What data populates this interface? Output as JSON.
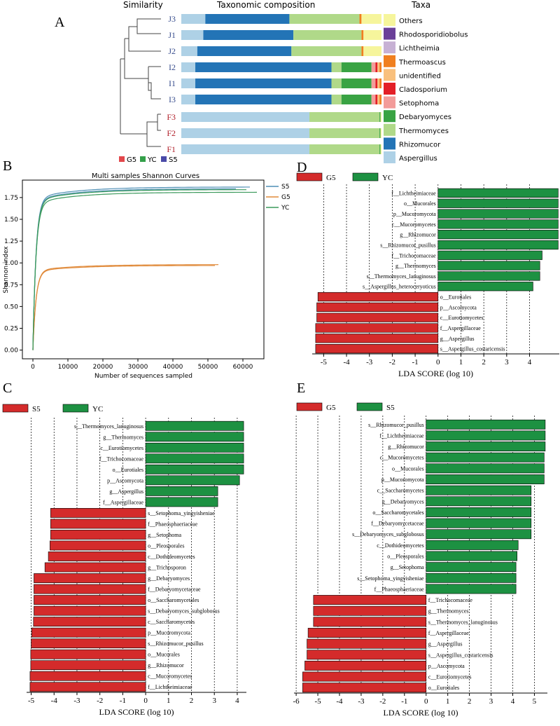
{
  "colors": {
    "Aspergillus": "#aed1e6",
    "Rhizomucor": "#2374b6",
    "Thermomyces": "#b0d989",
    "Debaryomyces": "#39a343",
    "Setophoma": "#f39c9a",
    "Cladosporium": "#e31f27",
    "unidentified": "#f9c07d",
    "Thermoascus": "#f07f1f",
    "Lichtheimia": "#c7b1d4",
    "Rhodosporidiobolus": "#6a3f98",
    "Others": "#f6f59c",
    "G5": "#e2474b",
    "YC": "#34a04a",
    "S5": "#4a4aa8",
    "lda_red": "#d42b2b",
    "lda_green": "#1d9142",
    "labelRed": "#b2222c",
    "labelBlue": "#3a4f8f",
    "curveS5": "#4f8fb5",
    "curveG5": "#e08a3a",
    "curveYC": "#3c9a5c"
  },
  "panelA": {
    "letter": "A",
    "headers": {
      "similarity": "Similarity",
      "composition": "Taxonomic composition",
      "taxa": "Taxa"
    },
    "taxa": [
      "Aspergillus",
      "Rhizomucor",
      "Thermomyces",
      "Debaryomyces",
      "Setophoma",
      "Cladosporium",
      "unidentified",
      "Thermoascus",
      "Lichtheimia",
      "Rhodosporidiobolus",
      "Others"
    ],
    "legend_order": [
      "Others",
      "Rhodosporidiobolus",
      "Lichtheimia",
      "Thermoascus",
      "unidentified",
      "Cladosporium",
      "Setophoma",
      "Debaryomyces",
      "Thermomyces",
      "Rhizomucor",
      "Aspergillus"
    ],
    "samples": [
      {
        "name": "J3",
        "color": "labelBlue",
        "values": [
          0.12,
          0.42,
          0.35,
          0,
          0,
          0,
          0,
          0.01,
          0,
          0,
          0.1
        ]
      },
      {
        "name": "J1",
        "color": "labelBlue",
        "values": [
          0.11,
          0.45,
          0.34,
          0,
          0,
          0,
          0,
          0.01,
          0,
          0,
          0.09
        ]
      },
      {
        "name": "J2",
        "color": "labelBlue",
        "values": [
          0.08,
          0.47,
          0.35,
          0,
          0,
          0,
          0,
          0.01,
          0,
          0,
          0.09
        ]
      },
      {
        "name": "I2",
        "color": "labelBlue",
        "values": [
          0.07,
          0.68,
          0.05,
          0.15,
          0.02,
          0.01,
          0.01,
          0.01,
          0,
          0,
          0
        ]
      },
      {
        "name": "I1",
        "color": "labelBlue",
        "values": [
          0.07,
          0.68,
          0.05,
          0.15,
          0.02,
          0.01,
          0.01,
          0.01,
          0,
          0,
          0
        ]
      },
      {
        "name": "I3",
        "color": "labelBlue",
        "values": [
          0.07,
          0.68,
          0.05,
          0.15,
          0.02,
          0.01,
          0.01,
          0.01,
          0,
          0,
          0
        ]
      },
      {
        "name": "F3",
        "color": "labelRed",
        "values": [
          0.64,
          0,
          0.35,
          0.005,
          0,
          0,
          0,
          0,
          0,
          0,
          0.005
        ]
      },
      {
        "name": "F2",
        "color": "labelRed",
        "values": [
          0.64,
          0,
          0.35,
          0.005,
          0,
          0,
          0,
          0,
          0,
          0,
          0.005
        ]
      },
      {
        "name": "F1",
        "color": "labelRed",
        "values": [
          0.64,
          0,
          0.35,
          0.005,
          0,
          0,
          0,
          0,
          0,
          0,
          0.005
        ]
      }
    ]
  },
  "panelB": {
    "letter": "B",
    "chart_data": {
      "type": "line",
      "title": "Multi samples Shannon Curves",
      "xlabel": "Number of sequences sampled",
      "ylabel": "Shannon index",
      "xlim": [
        -3000,
        66000
      ],
      "ylim": [
        -0.1,
        1.95
      ],
      "xticks": [
        0,
        10000,
        20000,
        30000,
        40000,
        50000,
        60000
      ],
      "yticks": [
        0.0,
        0.25,
        0.5,
        0.75,
        1.0,
        1.25,
        1.5,
        1.75
      ],
      "ytick_labels": [
        "0.00",
        "0.25",
        "0.50",
        "0.75",
        "1.00",
        "1.25",
        "1.50",
        "1.75"
      ],
      "series": [
        {
          "name": "S5",
          "color": "curveS5",
          "plateau": 1.87,
          "xmax": 62000
        },
        {
          "name": "S5",
          "color": "curveS5",
          "plateau": 1.85,
          "xmax": 58000
        },
        {
          "name": "G5",
          "color": "curveG5",
          "plateau": 0.98,
          "xmax": 53000
        },
        {
          "name": "G5",
          "color": "curveG5",
          "plateau": 0.97,
          "xmax": 52000
        },
        {
          "name": "YC",
          "color": "curveYC",
          "plateau": 1.81,
          "xmax": 64000
        },
        {
          "name": "YC",
          "color": "curveYC",
          "plateau": 1.84,
          "xmax": 61000
        }
      ],
      "legend": [
        "S5",
        "G5",
        "YC"
      ],
      "top_legend": [
        "G5",
        "YC",
        "S5"
      ]
    }
  },
  "panelC": {
    "letter": "C",
    "chart_data": {
      "type": "bar",
      "orientation": "horizontal",
      "xlabel": "LDA SCORE (log 10)",
      "xlim": [
        -5.2,
        4.4
      ],
      "xticks": [
        -5,
        -4,
        -3,
        -2,
        -1,
        0,
        1,
        2,
        3,
        4
      ],
      "legend": [
        {
          "name": "S5",
          "color": "lda_red"
        },
        {
          "name": "YC",
          "color": "lda_green"
        }
      ],
      "bars": [
        {
          "label": "s__Thermomyces_lanuginosus",
          "value": 4.28
        },
        {
          "label": "g__Thermomyces",
          "value": 4.28
        },
        {
          "label": "c__Eurotiomycetes",
          "value": 4.28
        },
        {
          "label": "f__Trichocomaceae",
          "value": 4.28
        },
        {
          "label": "o__Eurotiales",
          "value": 4.28
        },
        {
          "label": "p__Ascomycota",
          "value": 4.1
        },
        {
          "label": "g__Aspergillus",
          "value": 3.15
        },
        {
          "label": "f__Aspergillaceae",
          "value": 3.15
        },
        {
          "label": "s__Setophoma_yingyisheniae",
          "value": -4.15
        },
        {
          "label": "f__Phaeosphaeriaceae",
          "value": -4.15
        },
        {
          "label": "g__Setophoma",
          "value": -4.15
        },
        {
          "label": "o__Pleosporales",
          "value": -4.18
        },
        {
          "label": "c__Dothideomycetes",
          "value": -4.25
        },
        {
          "label": "g__Trichosporon",
          "value": -4.4
        },
        {
          "label": "g__Debaryomyces",
          "value": -4.88
        },
        {
          "label": "f__Debaryomycetaceae",
          "value": -4.88
        },
        {
          "label": "o__Saccharomycetales",
          "value": -4.88
        },
        {
          "label": "s__Debaryomyces_subglobosus",
          "value": -4.88
        },
        {
          "label": "c__Saccharomycetes",
          "value": -4.9
        },
        {
          "label": "p__Mucoromycota",
          "value": -4.98
        },
        {
          "label": "s__Rhizomucor_pusillus",
          "value": -5.0
        },
        {
          "label": "o__Mucorales",
          "value": -5.02
        },
        {
          "label": "g__Rhizomucor",
          "value": -5.02
        },
        {
          "label": "c__Mucoromycetes",
          "value": -5.05
        },
        {
          "label": "f__Lichtheimiaceae",
          "value": -5.05
        }
      ]
    }
  },
  "panelD": {
    "letter": "D",
    "chart_data": {
      "type": "bar",
      "orientation": "horizontal",
      "xlabel": "LDA SCORE (log 10)",
      "xlim": [
        -5.5,
        5.3
      ],
      "xticks": [
        -5,
        -4,
        -3,
        -2,
        -1,
        0,
        1,
        2,
        3,
        4
      ],
      "legend": [
        {
          "name": "G5",
          "color": "lda_red"
        },
        {
          "name": "YC",
          "color": "lda_green"
        }
      ],
      "bars": [
        {
          "label": "f__Lichtheimiaceae",
          "value": 5.25
        },
        {
          "label": "o__Mucorales",
          "value": 5.25
        },
        {
          "label": "p__Mucoromycota",
          "value": 5.25
        },
        {
          "label": "c__Mucoromycetes",
          "value": 5.25
        },
        {
          "label": "g__Rhizomucor",
          "value": 5.25
        },
        {
          "label": "s__Rhizomucor_pusillus",
          "value": 5.25
        },
        {
          "label": "f__Trichocomaceae",
          "value": 4.55
        },
        {
          "label": "g__Thermomyces",
          "value": 4.45
        },
        {
          "label": "s__Thermomyces_lanuginosus",
          "value": 4.45
        },
        {
          "label": "s__Aspergillus_heteroceryoticus",
          "value": 4.15
        },
        {
          "label": "o__Eurotiales",
          "value": -5.25
        },
        {
          "label": "p__Ascomycota",
          "value": -5.3
        },
        {
          "label": "c__Eurotiomycetes",
          "value": -5.3
        },
        {
          "label": "f__Aspergillaceae",
          "value": -5.35
        },
        {
          "label": "g__Aspergillus",
          "value": -5.35
        },
        {
          "label": "s__Aspergillus_costaricensis",
          "value": -5.35
        }
      ]
    }
  },
  "panelE": {
    "letter": "E",
    "chart_data": {
      "type": "bar",
      "orientation": "horizontal",
      "xlabel": "LDA SCORE (log 10)",
      "xlim": [
        -6.1,
        5.6
      ],
      "xticks": [
        -6,
        -5,
        -4,
        -3,
        -2,
        -1,
        0,
        1,
        2,
        3,
        4,
        5
      ],
      "legend": [
        {
          "name": "G5",
          "color": "lda_red"
        },
        {
          "name": "S5",
          "color": "lda_green"
        }
      ],
      "bars": [
        {
          "label": "s__Rhizomucor_pusillus",
          "value": 5.5
        },
        {
          "label": "f__Lichtheimiaceae",
          "value": 5.5
        },
        {
          "label": "g__Rhizomucor",
          "value": 5.5
        },
        {
          "label": "c__Mucoromycetes",
          "value": 5.45
        },
        {
          "label": "o__Mucorales",
          "value": 5.45
        },
        {
          "label": "p__Mucoromycota",
          "value": 5.45
        },
        {
          "label": "c__Saccharomycetes",
          "value": 4.85
        },
        {
          "label": "g__Debaryomyces",
          "value": 4.85
        },
        {
          "label": "o__Saccharomycetales",
          "value": 4.85
        },
        {
          "label": "f__Debaryomycetaceae",
          "value": 4.85
        },
        {
          "label": "s__Debaryomyces_subglobosus",
          "value": 4.85
        },
        {
          "label": "c__Dothideomycetes",
          "value": 4.25
        },
        {
          "label": "o__Pleosporales",
          "value": 4.2
        },
        {
          "label": "g__Setophoma",
          "value": 4.15
        },
        {
          "label": "s__Setophoma_yingyisheniae",
          "value": 4.15
        },
        {
          "label": "f__Phaeosphaeriaceae",
          "value": 4.15
        },
        {
          "label": "f__Trichocomaceae",
          "value": -5.2
        },
        {
          "label": "g__Thermomyces",
          "value": -5.2
        },
        {
          "label": "s__Thermomyces_lanuginosus",
          "value": -5.2
        },
        {
          "label": "f__Aspergillaceae",
          "value": -5.45
        },
        {
          "label": "g__Aspergillus",
          "value": -5.5
        },
        {
          "label": "s__Aspergillus_costaricensis",
          "value": -5.5
        },
        {
          "label": "p__Ascomycota",
          "value": -5.6
        },
        {
          "label": "c__Eurotiomycetes",
          "value": -5.7
        },
        {
          "label": "o__Eurotiales",
          "value": -5.7
        }
      ]
    }
  }
}
